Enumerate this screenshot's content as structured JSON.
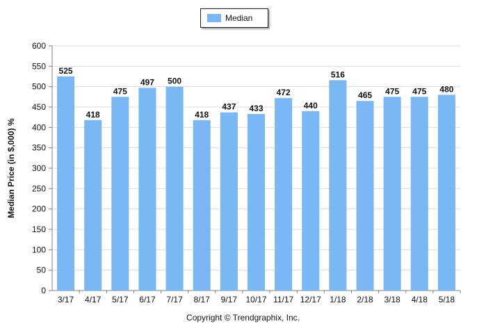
{
  "colors": {
    "bar": "#7ab8f5",
    "grid": "#dcdcdc",
    "axis": "#808080",
    "text": "#111111"
  },
  "legend": {
    "label": "Median"
  },
  "copyright": "Copyright © Trendgraphix, Inc.",
  "chart_data": {
    "type": "bar",
    "title": "",
    "xlabel": "",
    "ylabel": "Median Price (in $,000) %",
    "ylim": [
      0,
      600
    ],
    "yticks": [
      0,
      50,
      100,
      150,
      200,
      250,
      300,
      350,
      400,
      450,
      500,
      550,
      600
    ],
    "grid": true,
    "legend_position": "top-center",
    "categories": [
      "3/17",
      "4/17",
      "5/17",
      "6/17",
      "7/17",
      "8/17",
      "9/17",
      "10/17",
      "11/17",
      "12/17",
      "1/18",
      "2/18",
      "3/18",
      "4/18",
      "5/18"
    ],
    "series": [
      {
        "name": "Median",
        "values": [
          525,
          418,
          475,
          497,
          500,
          418,
          437,
          433,
          472,
          440,
          516,
          465,
          475,
          475,
          480
        ]
      }
    ]
  }
}
